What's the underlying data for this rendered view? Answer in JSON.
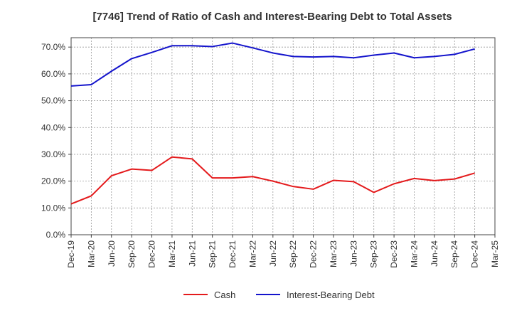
{
  "chart_data": {
    "type": "line",
    "title": "[7746]  Trend of Ratio of Cash and Interest-Bearing Debt to Total Assets",
    "xlabel": "",
    "ylabel": "",
    "x": [
      "Dec-19",
      "Mar-20",
      "Jun-20",
      "Sep-20",
      "Dec-20",
      "Mar-21",
      "Jun-21",
      "Sep-21",
      "Dec-21",
      "Mar-22",
      "Jun-22",
      "Sep-22",
      "Dec-22",
      "Mar-23",
      "Jun-23",
      "Sep-23",
      "Dec-23",
      "Mar-24",
      "Jun-24",
      "Sep-24",
      "Dec-24",
      "Mar-25"
    ],
    "ylim": [
      0,
      70
    ],
    "yticks": [
      0,
      10,
      20,
      30,
      40,
      50,
      60,
      70
    ],
    "ytick_labels": [
      "0.0%",
      "10.0%",
      "20.0%",
      "30.0%",
      "40.0%",
      "50.0%",
      "60.0%",
      "70.0%"
    ],
    "grid": true,
    "legend_position": "bottom",
    "series": [
      {
        "name": "Cash",
        "color": "#e41a1c",
        "values": [
          11.5,
          14.5,
          22.0,
          24.5,
          24.0,
          29.0,
          28.3,
          21.2,
          21.2,
          21.7,
          20.0,
          18.0,
          17.0,
          20.3,
          19.8,
          15.8,
          19.0,
          21.0,
          20.2,
          20.8,
          23.0,
          null
        ]
      },
      {
        "name": "Interest-Bearing Debt",
        "color": "#1414cc",
        "values": [
          55.5,
          56.0,
          61.0,
          65.7,
          68.0,
          70.5,
          70.5,
          70.2,
          71.5,
          69.7,
          67.8,
          66.5,
          66.3,
          66.5,
          66.0,
          67.0,
          67.8,
          66.0,
          66.5,
          67.3,
          69.3,
          null
        ]
      }
    ]
  }
}
